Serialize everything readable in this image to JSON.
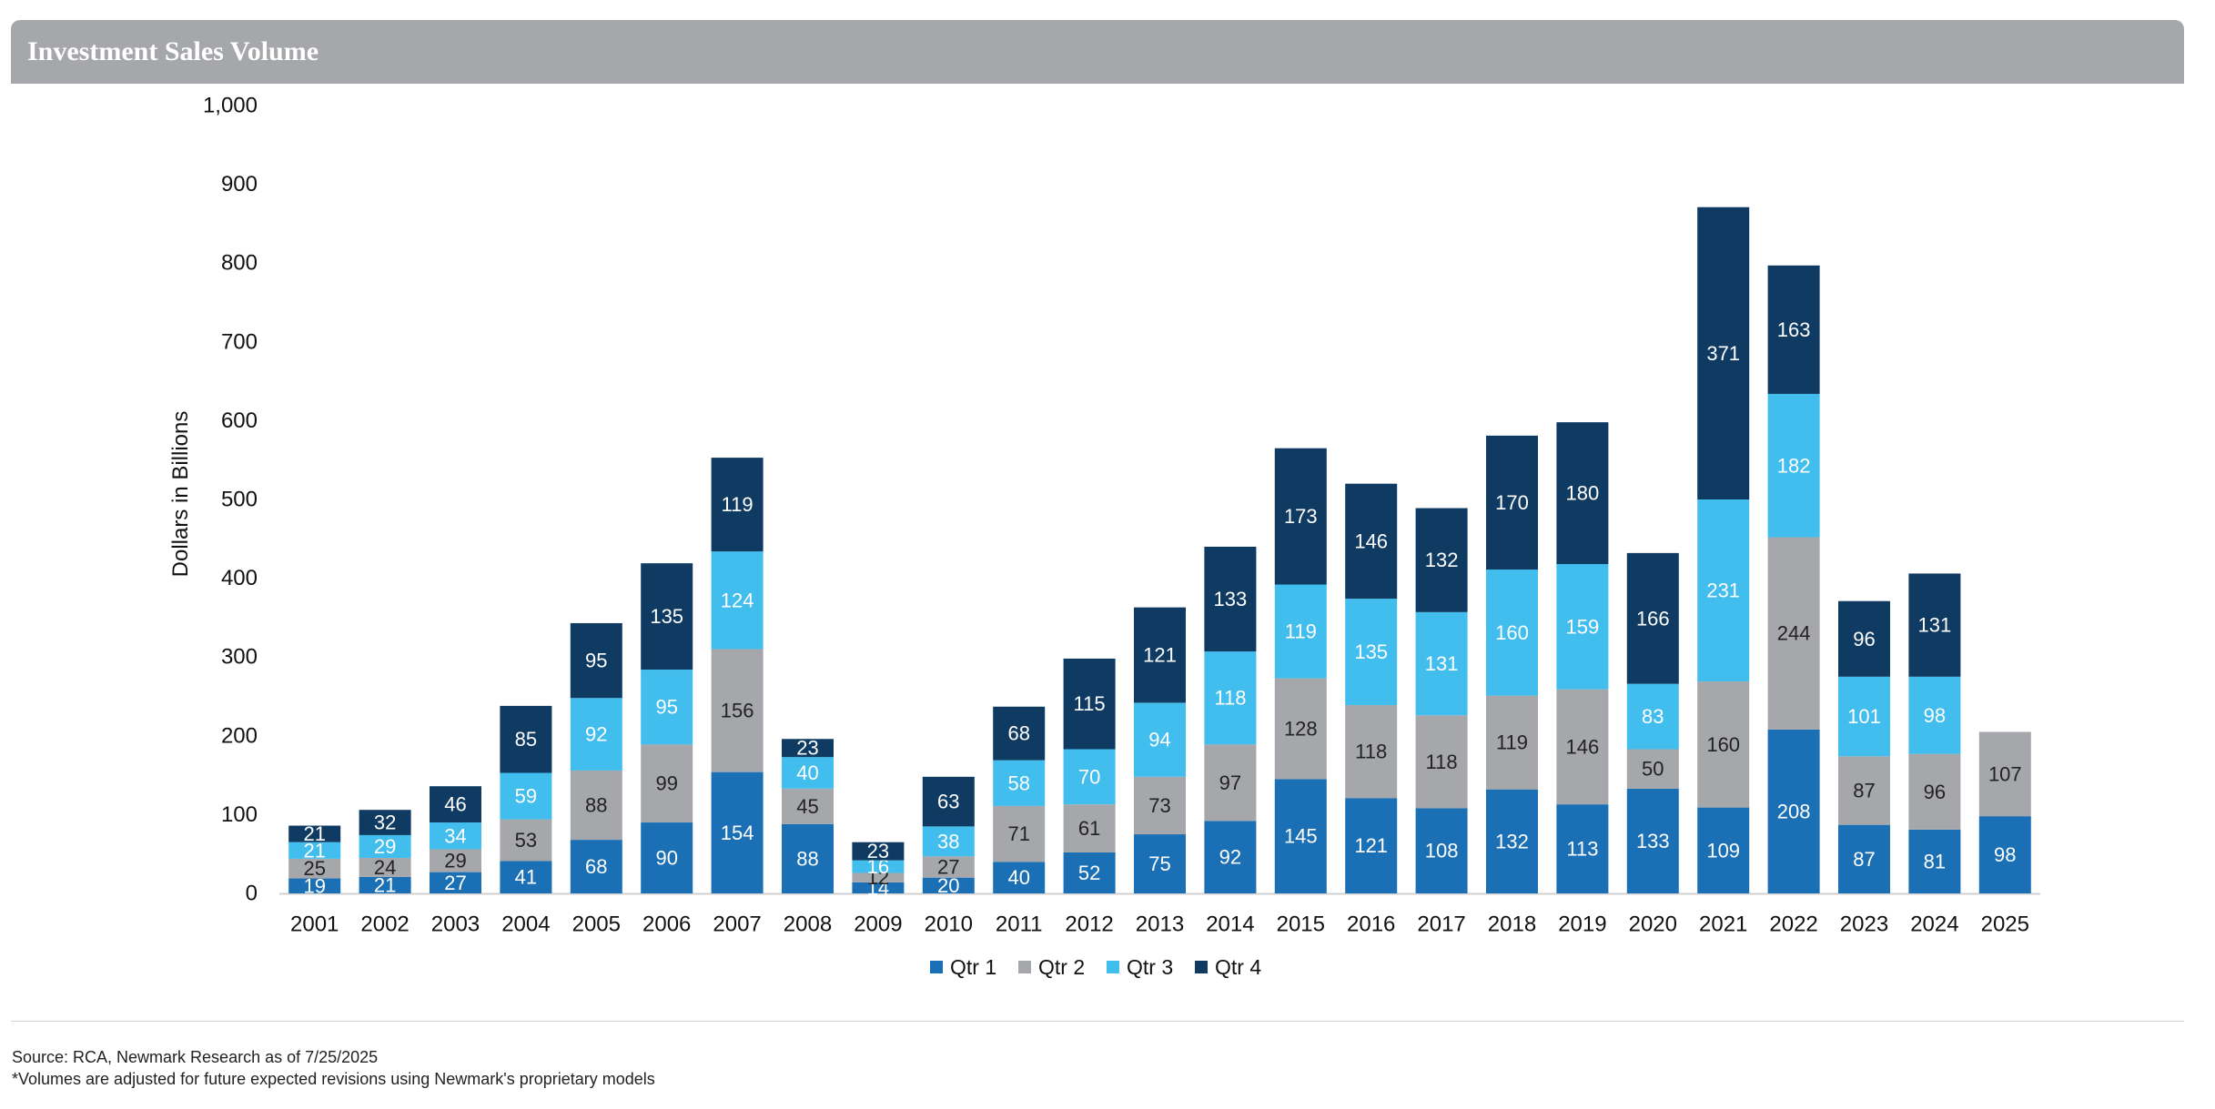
{
  "header": {
    "title": "Investment Sales Volume"
  },
  "footer": {
    "source": "Source: RCA, Newmark Research as of 7/25/2025",
    "note": "*Volumes are adjusted for future expected revisions using Newmark's proprietary models"
  },
  "chart_data": {
    "type": "bar",
    "stacked": true,
    "title": "Investment Sales Volume",
    "xlabel": "",
    "ylabel": "Dollars in Billions",
    "ylim": [
      0,
      1000
    ],
    "yticks": [
      "0",
      "100",
      "200",
      "300",
      "400",
      "500",
      "600",
      "700",
      "800",
      "900",
      "1,000"
    ],
    "grid": false,
    "legend": "bottom",
    "categories": [
      "2001",
      "2002",
      "2003",
      "2004",
      "2005",
      "2006",
      "2007",
      "2008",
      "2009",
      "2010",
      "2011",
      "2012",
      "2013",
      "2014",
      "2015",
      "2016",
      "2017",
      "2018",
      "2019",
      "2020",
      "2021",
      "2022",
      "2023",
      "2024",
      "2025"
    ],
    "series": [
      {
        "name": "Qtr 1",
        "color": "#1a6fb5",
        "label_color": "#ffffff",
        "values": [
          19,
          21,
          27,
          41,
          68,
          90,
          154,
          88,
          14,
          20,
          40,
          52,
          75,
          92,
          145,
          121,
          108,
          132,
          113,
          133,
          109,
          208,
          87,
          81,
          98
        ]
      },
      {
        "name": "Qtr 2",
        "color": "#a6a7aa",
        "label_color": "#222222",
        "values": [
          25,
          24,
          29,
          53,
          88,
          99,
          156,
          45,
          12,
          27,
          71,
          61,
          73,
          97,
          128,
          118,
          118,
          119,
          146,
          50,
          160,
          244,
          87,
          96,
          107
        ]
      },
      {
        "name": "Qtr 3",
        "color": "#41bdee",
        "label_color": "#ffffff",
        "values": [
          21,
          29,
          34,
          59,
          92,
          95,
          124,
          40,
          16,
          38,
          58,
          70,
          94,
          118,
          119,
          135,
          131,
          160,
          159,
          83,
          231,
          182,
          101,
          98,
          null
        ]
      },
      {
        "name": "Qtr 4",
        "color": "#0f3a62",
        "label_color": "#ffffff",
        "values": [
          21,
          32,
          46,
          85,
          95,
          135,
          119,
          23,
          23,
          63,
          68,
          115,
          121,
          133,
          173,
          146,
          132,
          170,
          180,
          166,
          371,
          163,
          96,
          131,
          null
        ]
      }
    ]
  }
}
